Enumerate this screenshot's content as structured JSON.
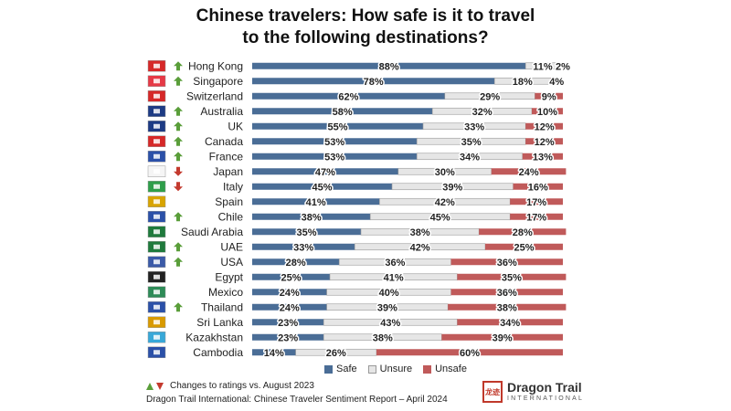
{
  "title_lines": [
    "Chinese travelers: How safe is it to travel",
    "to the following destinations?"
  ],
  "colors": {
    "safe": "#4a6d96",
    "unsure": "#e6e6e6",
    "unsafe": "#c05a5a",
    "up": "#5a9e3a",
    "down": "#c43a2e"
  },
  "chart_data": {
    "type": "bar",
    "orientation": "horizontal",
    "stacked": true,
    "categories": [
      "Hong Kong",
      "Singapore",
      "Switzerland",
      "Australia",
      "UK",
      "Canada",
      "France",
      "Japan",
      "Italy",
      "Spain",
      "Chile",
      "Saudi Arabia",
      "UAE",
      "USA",
      "Egypt",
      "Mexico",
      "Thailand",
      "Sri Lanka",
      "Kazakhstan",
      "Cambodia"
    ],
    "series": [
      {
        "name": "Safe",
        "values": [
          88,
          78,
          62,
          58,
          55,
          53,
          53,
          47,
          45,
          41,
          38,
          35,
          33,
          28,
          25,
          24,
          24,
          23,
          23,
          14
        ]
      },
      {
        "name": "Unsure",
        "values": [
          11,
          18,
          29,
          32,
          33,
          35,
          34,
          30,
          39,
          42,
          45,
          38,
          42,
          36,
          41,
          40,
          39,
          43,
          38,
          26
        ]
      },
      {
        "name": "Unsafe",
        "values": [
          2,
          4,
          9,
          10,
          12,
          12,
          13,
          24,
          16,
          17,
          17,
          28,
          25,
          36,
          35,
          36,
          38,
          34,
          39,
          60
        ]
      }
    ],
    "change_vs_prior": [
      "up",
      "up",
      "none",
      "up",
      "up",
      "up",
      "up",
      "down",
      "down",
      "none",
      "up",
      "none",
      "up",
      "up",
      "none",
      "none",
      "up",
      "none",
      "none",
      "none"
    ],
    "flag_icons": [
      "flag-hong-kong",
      "flag-singapore",
      "flag-switzerland",
      "flag-australia",
      "flag-uk",
      "flag-canada",
      "flag-france",
      "flag-japan",
      "flag-italy",
      "flag-spain",
      "flag-chile",
      "flag-saudi-arabia",
      "flag-uae",
      "flag-usa",
      "flag-egypt",
      "flag-mexico",
      "flag-thailand",
      "flag-sri-lanka",
      "flag-kazakhstan",
      "flag-cambodia"
    ],
    "legend": [
      "Safe",
      "Unsure",
      "Unsafe"
    ],
    "legend_position": "bottom",
    "xlim": [
      0,
      100
    ]
  },
  "footnote": "Changes to ratings vs. August 2023",
  "source": "Dragon Trail International: Chinese Traveler Sentiment Report – April 2024",
  "logo": {
    "name": "Dragon Trail",
    "sub": "INTERNATIONAL",
    "seal": "龙迹"
  }
}
